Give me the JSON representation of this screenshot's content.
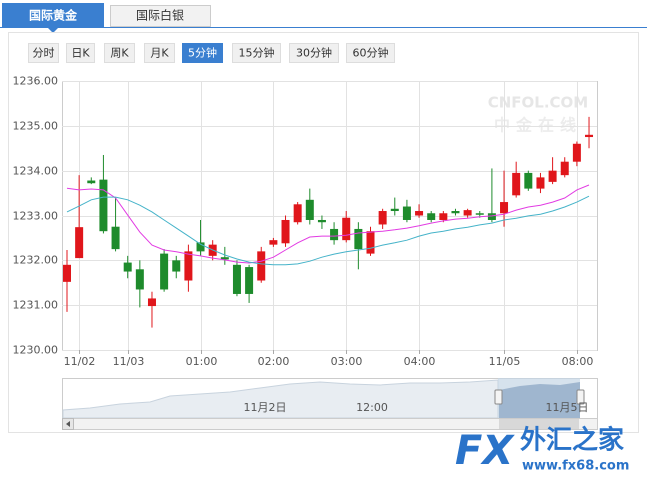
{
  "tabs": [
    "国际黄金",
    "国际白银"
  ],
  "periods": [
    "分时",
    "日K",
    "周K",
    "月K",
    "5分钟",
    "15分钟",
    "30分钟",
    "60分钟"
  ],
  "active_period": 4,
  "watermark": {
    "top": "CNFOL.COM",
    "bottom": "中金在线"
  },
  "navigator_labels": [
    "11月2日",
    "12:00",
    "11月5日"
  ],
  "logo": {
    "mark": "FX",
    "name": "外汇之家",
    "url": "www.fx68.com"
  },
  "chart_data": {
    "type": "candlestick",
    "categories": [
      null,
      "11/02",
      null,
      null,
      null,
      "11/03",
      null,
      null,
      null,
      null,
      null,
      "01:00",
      null,
      null,
      null,
      null,
      null,
      "02:00",
      null,
      null,
      null,
      null,
      null,
      "03:00",
      null,
      null,
      null,
      null,
      null,
      "04:00",
      null,
      null,
      null,
      null,
      null,
      null,
      "11/05",
      null,
      null,
      null,
      null,
      null,
      "08:00",
      null
    ],
    "open": [
      1231.52,
      1232.05,
      1233.78,
      1233.8,
      1232.75,
      1231.95,
      1231.8,
      1230.98,
      1232.15,
      1232.0,
      1231.55,
      1232.4,
      1232.1,
      1232.07,
      1231.9,
      1231.85,
      1231.55,
      1232.35,
      1232.38,
      1232.85,
      1233.35,
      1232.9,
      1232.7,
      1232.45,
      1232.7,
      1232.15,
      1232.8,
      1233.15,
      1233.2,
      1233.0,
      1233.05,
      1232.9,
      1233.1,
      1233.0,
      1233.05,
      1233.05,
      1233.05,
      1233.45,
      1233.95,
      1233.6,
      1233.75,
      1233.9,
      1234.2,
      1234.75
    ],
    "high": [
      1232.23,
      1233.9,
      1233.85,
      1234.35,
      1233.4,
      1232.1,
      1232.0,
      1231.3,
      1232.25,
      1232.1,
      1232.35,
      1232.9,
      1232.45,
      1232.3,
      1232.0,
      1231.9,
      1232.3,
      1232.5,
      1233.0,
      1233.3,
      1233.6,
      1233.0,
      1232.85,
      1233.1,
      1232.85,
      1232.75,
      1233.15,
      1233.4,
      1233.35,
      1233.25,
      1233.1,
      1233.1,
      1233.15,
      1233.15,
      1233.1,
      1234.05,
      1234.0,
      1234.2,
      1234.0,
      1233.95,
      1234.3,
      1234.3,
      1234.65,
      1235.2
    ],
    "low": [
      1230.85,
      1232.05,
      1233.7,
      1232.6,
      1232.2,
      1231.6,
      1230.95,
      1230.5,
      1231.3,
      1231.6,
      1231.3,
      1232.1,
      1232.0,
      1231.9,
      1231.2,
      1231.05,
      1231.5,
      1232.3,
      1232.3,
      1232.8,
      1232.8,
      1232.7,
      1232.35,
      1232.4,
      1231.8,
      1232.1,
      1232.7,
      1233.0,
      1232.85,
      1232.95,
      1232.85,
      1232.85,
      1233.0,
      1232.95,
      1232.95,
      1232.85,
      1232.75,
      1233.4,
      1233.55,
      1233.5,
      1233.7,
      1233.85,
      1234.1,
      1234.5
    ],
    "close": [
      1231.9,
      1232.74,
      1233.72,
      1232.65,
      1232.25,
      1231.75,
      1231.35,
      1231.15,
      1231.35,
      1231.75,
      1232.2,
      1232.2,
      1232.35,
      1232.02,
      1231.25,
      1231.25,
      1232.2,
      1232.45,
      1232.9,
      1233.25,
      1232.9,
      1232.85,
      1232.45,
      1232.95,
      1232.25,
      1232.65,
      1233.1,
      1233.1,
      1232.9,
      1233.1,
      1232.9,
      1233.05,
      1233.05,
      1233.12,
      1233.04,
      1232.9,
      1233.3,
      1233.95,
      1233.6,
      1233.85,
      1234.0,
      1234.2,
      1234.6,
      1234.8
    ],
    "up_color": "#e0161b",
    "down_color": "#1e8b2c",
    "lines": [
      {
        "color": "#e23be3",
        "values": [
          1233.61,
          1233.57,
          1233.59,
          1233.57,
          1233.39,
          1233.01,
          1232.63,
          1232.34,
          1232.23,
          1232.19,
          1232.14,
          1232.1,
          1232.05,
          1232.01,
          1231.96,
          1231.94,
          1231.98,
          1232.07,
          1232.23,
          1232.39,
          1232.52,
          1232.54,
          1232.54,
          1232.56,
          1232.61,
          1232.63,
          1232.65,
          1232.68,
          1232.72,
          1232.77,
          1232.83,
          1232.88,
          1232.92,
          1232.94,
          1232.97,
          1232.99,
          1233.03,
          1233.12,
          1233.19,
          1233.23,
          1233.3,
          1233.39,
          1233.57,
          1233.68
        ]
      },
      {
        "color": "#45b3c9",
        "values": [
          1233.08,
          1233.21,
          1233.35,
          1233.41,
          1233.41,
          1233.35,
          1233.23,
          1233.08,
          1232.9,
          1232.72,
          1232.54,
          1232.36,
          1232.23,
          1232.12,
          1232.03,
          1231.96,
          1231.92,
          1231.9,
          1231.9,
          1231.92,
          1231.98,
          1232.07,
          1232.14,
          1232.19,
          1232.23,
          1232.27,
          1232.34,
          1232.39,
          1232.45,
          1232.54,
          1232.61,
          1232.65,
          1232.7,
          1232.74,
          1232.79,
          1232.83,
          1232.9,
          1232.94,
          1232.99,
          1233.03,
          1233.1,
          1233.19,
          1233.3,
          1233.43
        ]
      }
    ],
    "ylim": [
      1230,
      1236
    ],
    "yticks": [
      {
        "value": 1230,
        "label": "1230.00"
      },
      {
        "value": 1231,
        "label": "1231.00"
      },
      {
        "value": 1232,
        "label": "1232.00"
      },
      {
        "value": 1233,
        "label": "1233.00"
      },
      {
        "value": 1234,
        "label": "1234.00"
      },
      {
        "value": 1235,
        "label": "1235.00"
      },
      {
        "value": 1236,
        "label": "1236.00"
      }
    ],
    "grid": true
  }
}
